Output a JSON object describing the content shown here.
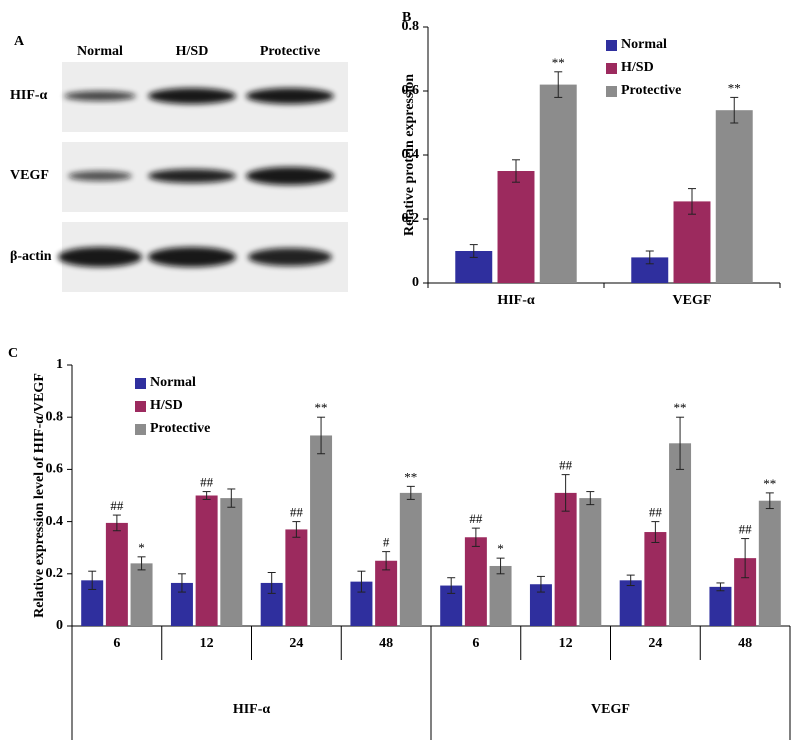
{
  "blot": {
    "label": "A",
    "lanes": [
      "Normal",
      "H/SD",
      "Protective"
    ],
    "rows": [
      "HIF-α",
      "VEGF",
      "β-actin"
    ]
  },
  "chart_data": [
    {
      "type": "bar",
      "panel_label": "B",
      "y_label": "Relative protein expression",
      "categories": [
        "HIF-α",
        "VEGF"
      ],
      "series": [
        {
          "name": "Normal",
          "color": "#2f2f9e",
          "values": [
            0.1,
            0.08
          ],
          "errors": [
            0.02,
            0.02
          ],
          "annotations": [
            null,
            null
          ]
        },
        {
          "name": "H/SD",
          "color": "#9c2a5e",
          "values": [
            0.35,
            0.255
          ],
          "errors": [
            0.035,
            0.04
          ],
          "annotations": [
            null,
            null
          ]
        },
        {
          "name": "Protective",
          "color": "#8c8c8c",
          "values": [
            0.62,
            0.54
          ],
          "errors": [
            0.04,
            0.04
          ],
          "annotations": [
            "**",
            "**"
          ]
        }
      ],
      "ylim": [
        0,
        0.8
      ],
      "yticks": [
        0,
        0.2,
        0.4,
        0.6,
        0.8
      ],
      "legend": "upper-right"
    },
    {
      "type": "bar",
      "panel_label": "C",
      "y_label": "Relative expression level of HIF-α/VEGF",
      "categories": [
        "6",
        "12",
        "24",
        "48",
        "6",
        "12",
        "24",
        "48"
      ],
      "groups": [
        "HIF-α",
        "VEGF"
      ],
      "series": [
        {
          "name": "Normal",
          "color": "#2f2f9e",
          "values": [
            0.175,
            0.165,
            0.165,
            0.17,
            0.155,
            0.16,
            0.175,
            0.15
          ],
          "errors": [
            0.035,
            0.035,
            0.04,
            0.04,
            0.03,
            0.03,
            0.02,
            0.015
          ],
          "annotations": [
            null,
            null,
            null,
            null,
            null,
            null,
            null,
            null
          ]
        },
        {
          "name": "H/SD",
          "color": "#9c2a5e",
          "values": [
            0.395,
            0.5,
            0.37,
            0.25,
            0.34,
            0.51,
            0.36,
            0.26
          ],
          "errors": [
            0.03,
            0.015,
            0.03,
            0.035,
            0.035,
            0.07,
            0.04,
            0.075
          ],
          "annotations": [
            "##",
            "##",
            "##",
            "#",
            "##",
            "##",
            "##",
            "##"
          ]
        },
        {
          "name": "Protective",
          "color": "#8c8c8c",
          "values": [
            0.24,
            0.49,
            0.73,
            0.51,
            0.23,
            0.49,
            0.7,
            0.48
          ],
          "errors": [
            0.025,
            0.035,
            0.07,
            0.025,
            0.03,
            0.025,
            0.1,
            0.03
          ],
          "annotations": [
            "*",
            null,
            "**",
            "**",
            "*",
            null,
            "**",
            "**"
          ]
        }
      ],
      "ylim": [
        0,
        1
      ],
      "yticks": [
        0,
        0.2,
        0.4,
        0.6,
        0.8,
        1
      ],
      "legend": "upper-left"
    }
  ]
}
